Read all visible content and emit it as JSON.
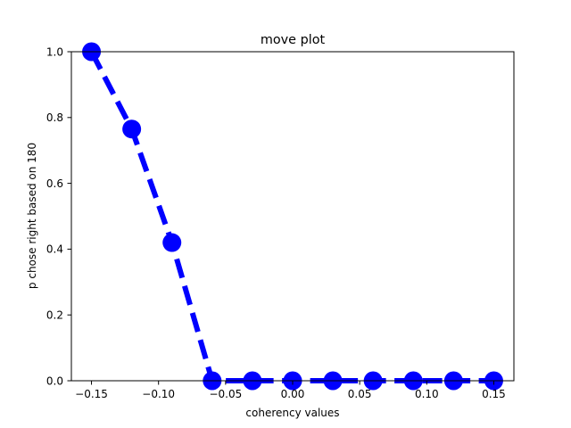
{
  "chart_data": {
    "type": "line",
    "title": "move plot",
    "xlabel": "coherency values",
    "ylabel": "p chose right based on 180",
    "xlim": [
      -0.165,
      0.165
    ],
    "ylim": [
      0.0,
      1.0
    ],
    "xticks": [
      -0.15,
      -0.1,
      -0.05,
      0.0,
      0.05,
      0.1,
      0.15
    ],
    "xtick_labels": [
      "−0.15",
      "−0.10",
      "−0.05",
      "0.00",
      "0.05",
      "0.10",
      "0.15"
    ],
    "yticks": [
      0.0,
      0.2,
      0.4,
      0.6,
      0.8,
      1.0
    ],
    "ytick_labels": [
      "0.0",
      "0.2",
      "0.4",
      "0.6",
      "0.8",
      "1.0"
    ],
    "grid": false,
    "legend": "none",
    "series": [
      {
        "x": [
          -0.15,
          -0.12,
          -0.09,
          -0.06,
          -0.03,
          0.0,
          0.03,
          0.06,
          0.09,
          0.12,
          0.15
        ],
        "y": [
          1.0,
          0.765,
          0.42,
          0.0,
          0.0,
          0.0,
          0.0,
          0.0,
          0.0,
          0.0,
          0.0
        ],
        "color": "#0000ff",
        "linestyle": "dashed",
        "marker": "circle"
      }
    ]
  }
}
